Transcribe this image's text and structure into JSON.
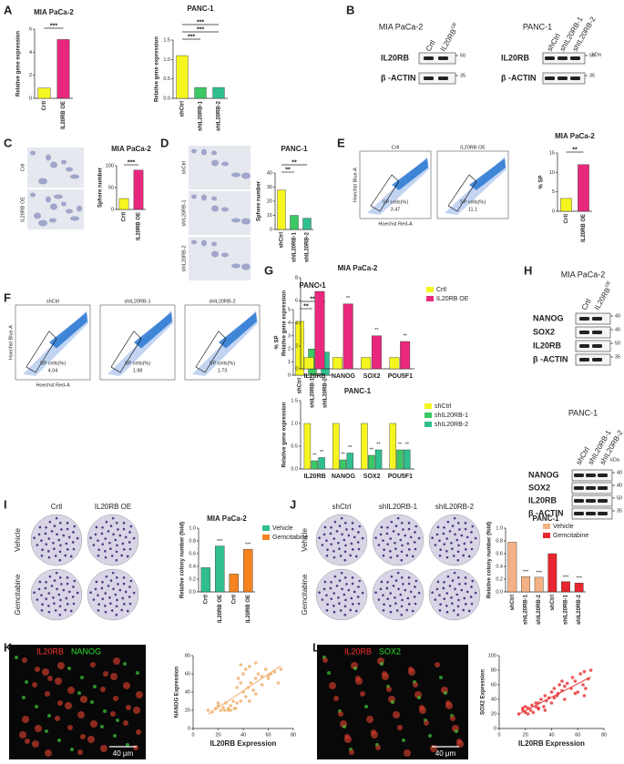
{
  "panels": [
    "A",
    "B",
    "C",
    "D",
    "E",
    "F",
    "G",
    "H",
    "I",
    "J",
    "K",
    "L"
  ],
  "chart_data": [
    {
      "type": "bar",
      "title": "MIA PaCa-2",
      "ylabel": "Relative gene expression",
      "categories": [
        "Crtl",
        "IL20RB OE"
      ],
      "values": [
        0.9,
        5.1
      ],
      "colors": [
        "#f5f51f",
        "#e8287d"
      ],
      "ylim": [
        0,
        6
      ],
      "yticks": [
        0,
        2,
        4,
        6
      ],
      "significance": [
        "***"
      ]
    },
    {
      "type": "bar",
      "title": "PANC-1",
      "ylabel": "Relative gene expression",
      "categories": [
        "shCtrl",
        "shIL20RB-1",
        "shIL20RB-2"
      ],
      "values": [
        1.1,
        0.28,
        0.28
      ],
      "colors": [
        "#f5f51f",
        "#3cc864",
        "#2fbf8f"
      ],
      "ylim": [
        0,
        1.5
      ],
      "yticks": [
        {
          "value": 0,
          "label": "0.0"
        },
        0.5,
        {
          "value": 1,
          "label": "1.0"
        },
        1.5
      ],
      "significance": [
        "***",
        "***",
        "***"
      ]
    },
    {
      "type": "bar",
      "title": "MIA PaCa-2",
      "ylabel": "Sphere number",
      "categories": [
        "Crtl",
        "IL20RB OE"
      ],
      "values": [
        25,
        90
      ],
      "colors": [
        "#f5f51f",
        "#e8287d"
      ],
      "ylim": [
        0,
        100
      ],
      "yticks": [
        0,
        50,
        100
      ],
      "significance": [
        "***"
      ]
    },
    {
      "type": "bar",
      "title": "PANC-1",
      "ylabel": "Sphere number",
      "categories": [
        "shCtrl",
        "shIL20RB-1",
        "shIL20RB-2"
      ],
      "values": [
        28,
        10,
        8
      ],
      "colors": [
        "#f5f51f",
        "#3cc864",
        "#2fbf8f"
      ],
      "ylim": [
        0,
        40
      ],
      "yticks": [
        0,
        10,
        20,
        30,
        40
      ],
      "significance": [
        "**",
        "**"
      ]
    },
    {
      "type": "bar",
      "title": "MIA PaCa-2",
      "ylabel": "% SP",
      "categories": [
        "Crtl",
        "IL20RB OE"
      ],
      "values": [
        3.3,
        12
      ],
      "colors": [
        "#f5f51f",
        "#e8287d"
      ],
      "ylim": [
        0,
        15
      ],
      "yticks": [
        0,
        5,
        10,
        15
      ],
      "significance": [
        "**"
      ]
    },
    {
      "type": "bar",
      "title": "PANC-1",
      "ylabel": "% SP",
      "categories": [
        "shCtrl",
        "shIL20RB-1",
        "shIL20RB-2"
      ],
      "values": [
        4.1,
        2.0,
        1.75
      ],
      "colors": [
        "#f5f51f",
        "#3cc864",
        "#2fbf8f"
      ],
      "ylim": [
        0,
        5
      ],
      "yticks": [
        0,
        1,
        2,
        3,
        4,
        5
      ],
      "significance": [
        "**",
        "**"
      ]
    },
    {
      "type": "grouped_bar",
      "title": "MIA PaCa-2",
      "ylabel": "Relative gene expression",
      "categories": [
        "IL20RB",
        "NANOG",
        "SOX2",
        "POU5F1"
      ],
      "series": [
        {
          "name": "Crtl",
          "color": "#f5f51f",
          "values": [
            1,
            1,
            1,
            1
          ]
        },
        {
          "name": "IL20RB OE",
          "color": "#e8287d",
          "values": [
            6.8,
            5.7,
            2.9,
            2.4
          ],
          "annotations": [
            "**",
            "**",
            "**",
            "**"
          ]
        }
      ],
      "ylim": [
        0,
        8
      ],
      "yticks": [
        0,
        2,
        4,
        6,
        8
      ]
    },
    {
      "type": "grouped_bar",
      "title": "PANC-1",
      "ylabel": "Relative gene expression",
      "categories": [
        "IL20RB",
        "NANOG",
        "SOX2",
        "POU5F1"
      ],
      "series": [
        {
          "name": "shCtrl",
          "color": "#f5f51f",
          "values": [
            1,
            1,
            1,
            1
          ]
        },
        {
          "name": "shIL20RB-1",
          "color": "#3cc864",
          "values": [
            0.18,
            0.2,
            0.3,
            0.42
          ],
          "annotations": [
            "**",
            "**",
            "**",
            "**"
          ]
        },
        {
          "name": "shIL20RB-2",
          "color": "#2fbf8f",
          "values": [
            0.25,
            0.35,
            0.42,
            0.42
          ],
          "annotations": [
            "**",
            "**",
            "**",
            "**"
          ]
        }
      ],
      "ylim": [
        0,
        1.5
      ],
      "yticks": [
        {
          "value": 0,
          "label": "0.0"
        },
        0.5,
        {
          "value": 1,
          "label": "1.0"
        },
        1.5
      ]
    },
    {
      "type": "bar",
      "title": "MIA PaCa-2",
      "ylabel": "Relative colony number (fold)",
      "categories": [
        "Crtl",
        "IL20RB OE",
        "Crtl",
        "IL20RB OE"
      ],
      "values": [
        0.38,
        0.72,
        0.28,
        0.67
      ],
      "colors": [
        "#2fbf8f",
        "#2fbf8f",
        "#f5831f",
        "#f5831f"
      ],
      "legend": [
        {
          "name": "Vehicle",
          "color": "#2fbf8f"
        },
        {
          "name": "Gemcitabine",
          "color": "#f5831f"
        }
      ],
      "annotations": [
        null,
        "***",
        null,
        "***"
      ],
      "ylim": [
        0,
        1
      ],
      "yticks": [
        {
          "value": 0,
          "label": "0.0"
        },
        0.2,
        0.4,
        0.6,
        0.8,
        {
          "value": 1,
          "label": "1.0"
        }
      ]
    },
    {
      "type": "bar",
      "title": "PANC-1",
      "ylabel": "Relative colony number (fold)",
      "categories": [
        "shCtrl",
        "shIL20RB-1",
        "shIL20RB-2",
        "shCtrl",
        "shIL20RB-1",
        "shIL20RB-2"
      ],
      "values": [
        0.78,
        0.24,
        0.23,
        0.6,
        0.16,
        0.14
      ],
      "colors": [
        "#f4b183",
        "#f4b183",
        "#f4b183",
        "#e8262d",
        "#e8262d",
        "#e8262d"
      ],
      "legend": [
        {
          "name": "Vehicle",
          "color": "#f4b183"
        },
        {
          "name": "Gemcitabine",
          "color": "#e8262d"
        }
      ],
      "annotations": [
        null,
        "***",
        "***",
        null,
        "***",
        "***"
      ],
      "ylim": [
        0,
        1
      ],
      "yticks": [
        {
          "value": 0,
          "label": "0.0"
        },
        0.2,
        0.4,
        0.6,
        0.8,
        {
          "value": 1,
          "label": "1.0"
        }
      ]
    },
    {
      "type": "scatter",
      "xlabel": "IL20RB Expression",
      "ylabel": "NANOG Expression",
      "color": "#f0b070",
      "x": [
        12,
        15,
        18,
        20,
        22,
        24,
        25,
        26,
        28,
        30,
        30,
        32,
        33,
        35,
        35,
        36,
        38,
        38,
        40,
        40,
        42,
        42,
        44,
        45,
        46,
        48,
        50,
        50,
        52,
        55,
        55,
        58,
        60,
        62,
        65,
        68,
        70,
        28,
        34,
        45,
        20,
        38,
        50,
        60
      ],
      "y": [
        20,
        18,
        22,
        25,
        20,
        23,
        20,
        28,
        22,
        25,
        20,
        30,
        22,
        45,
        28,
        55,
        50,
        30,
        40,
        60,
        35,
        65,
        45,
        68,
        50,
        42,
        55,
        38,
        60,
        48,
        57,
        65,
        55,
        60,
        62,
        50,
        65,
        20,
        22,
        30,
        28,
        70,
        72,
        58
      ],
      "xlim": [
        0,
        80
      ],
      "ylim": [
        0,
        80
      ],
      "xticks": [
        0,
        20,
        40,
        60,
        80
      ],
      "yticks": [
        0,
        20,
        40,
        60,
        80
      ]
    },
    {
      "type": "scatter",
      "xlabel": "IL20RB Expression",
      "ylabel": "SOX2 Expression",
      "color": "#e83a3a",
      "x": [
        15,
        18,
        20,
        20,
        22,
        24,
        25,
        26,
        28,
        30,
        30,
        32,
        34,
        35,
        36,
        38,
        40,
        40,
        42,
        44,
        45,
        46,
        48,
        50,
        52,
        55,
        56,
        58,
        60,
        62,
        64,
        65,
        66,
        68,
        70,
        18,
        22,
        28,
        35,
        42,
        50,
        58,
        65,
        48,
        30
      ],
      "y": [
        20,
        25,
        22,
        30,
        28,
        25,
        32,
        22,
        30,
        35,
        28,
        40,
        30,
        45,
        38,
        42,
        50,
        35,
        55,
        45,
        48,
        60,
        52,
        40,
        62,
        55,
        70,
        65,
        50,
        75,
        60,
        78,
        55,
        68,
        80,
        28,
        20,
        35,
        25,
        42,
        58,
        48,
        45,
        65,
        27
      ],
      "xlim": [
        0,
        80
      ],
      "ylim": [
        0,
        100
      ],
      "xticks": [
        0,
        20,
        40,
        60,
        80
      ],
      "yticks": [
        0,
        20,
        40,
        60,
        80,
        100
      ]
    }
  ],
  "blots": [
    {
      "title": "MIA PaCa-2",
      "lanes": [
        {
          "text": "Crtl"
        },
        {
          "text": "IL20RB",
          "sup": "OE"
        }
      ],
      "rows": [
        "IL20RB",
        "β -ACTIN"
      ],
      "markers": [
        50,
        35
      ]
    },
    {
      "title": "PANC-1",
      "kda": "kDa",
      "lanes": [
        {
          "text": "shCtrl"
        },
        {
          "text": "shIL20RB-1"
        },
        {
          "text": "shIL20RB-2"
        }
      ],
      "rows": [
        "IL20RB",
        "β -ACTIN"
      ],
      "markers": [
        50,
        35
      ]
    },
    {
      "title": "MIA PaCa-2",
      "lanes": [
        {
          "text": "Crtl"
        },
        {
          "text": "IL20RB",
          "sup": "OE"
        }
      ],
      "rows": [
        "NANOG",
        "SOX2",
        "IL20RB",
        "β -ACTIN"
      ],
      "markers": [
        40,
        40,
        50,
        35
      ]
    },
    {
      "title": "PANC-1",
      "kda": "kDa",
      "lanes": [
        {
          "text": "shCtrl"
        },
        {
          "text": "shIL20RB-1"
        },
        {
          "text": "shIL20RB-2"
        }
      ],
      "rows": [
        "NANOG",
        "SOX2",
        "IL20RB",
        "β -ACTIN"
      ],
      "markers": [
        40,
        40,
        50,
        35
      ]
    }
  ],
  "flow": {
    "gate_label": "SP cells(%)",
    "xlabel": "Hoechst Red-A",
    "ylabel": "Hoechst Blue-A",
    "groups": [
      {
        "titles": [
          "Crtl",
          "IL20RB OE"
        ],
        "values": [
          3.47,
          11.1
        ]
      },
      {
        "titles": [
          "shCtrl",
          "shIL20RB-1",
          "shIL20RB-2"
        ],
        "values": [
          4.04,
          1.98,
          1.73
        ]
      }
    ]
  },
  "spheres": [
    {
      "labels": [
        "Crtl",
        "IL20RB OE"
      ]
    },
    {
      "labels": [
        "shCtrl",
        "shIL20RB-1",
        "shIL20RB-2"
      ]
    }
  ],
  "colonies": [
    {
      "columns": [
        "Crtl",
        "IL20RB OE"
      ],
      "rows": [
        "Vehicle",
        "Gemcitabine"
      ]
    },
    {
      "columns": [
        "shCtrl",
        "shIL20RB-1",
        "shIL20RB-2"
      ],
      "rows": [
        "Vehicle",
        "Gemcitabine"
      ]
    }
  ],
  "fluorescence": [
    {
      "stains": [
        "IL20RB",
        "NANOG"
      ],
      "scale": "40 μm"
    },
    {
      "stains": [
        "IL20RB",
        "SOX2"
      ],
      "scale": "40 μm"
    }
  ]
}
